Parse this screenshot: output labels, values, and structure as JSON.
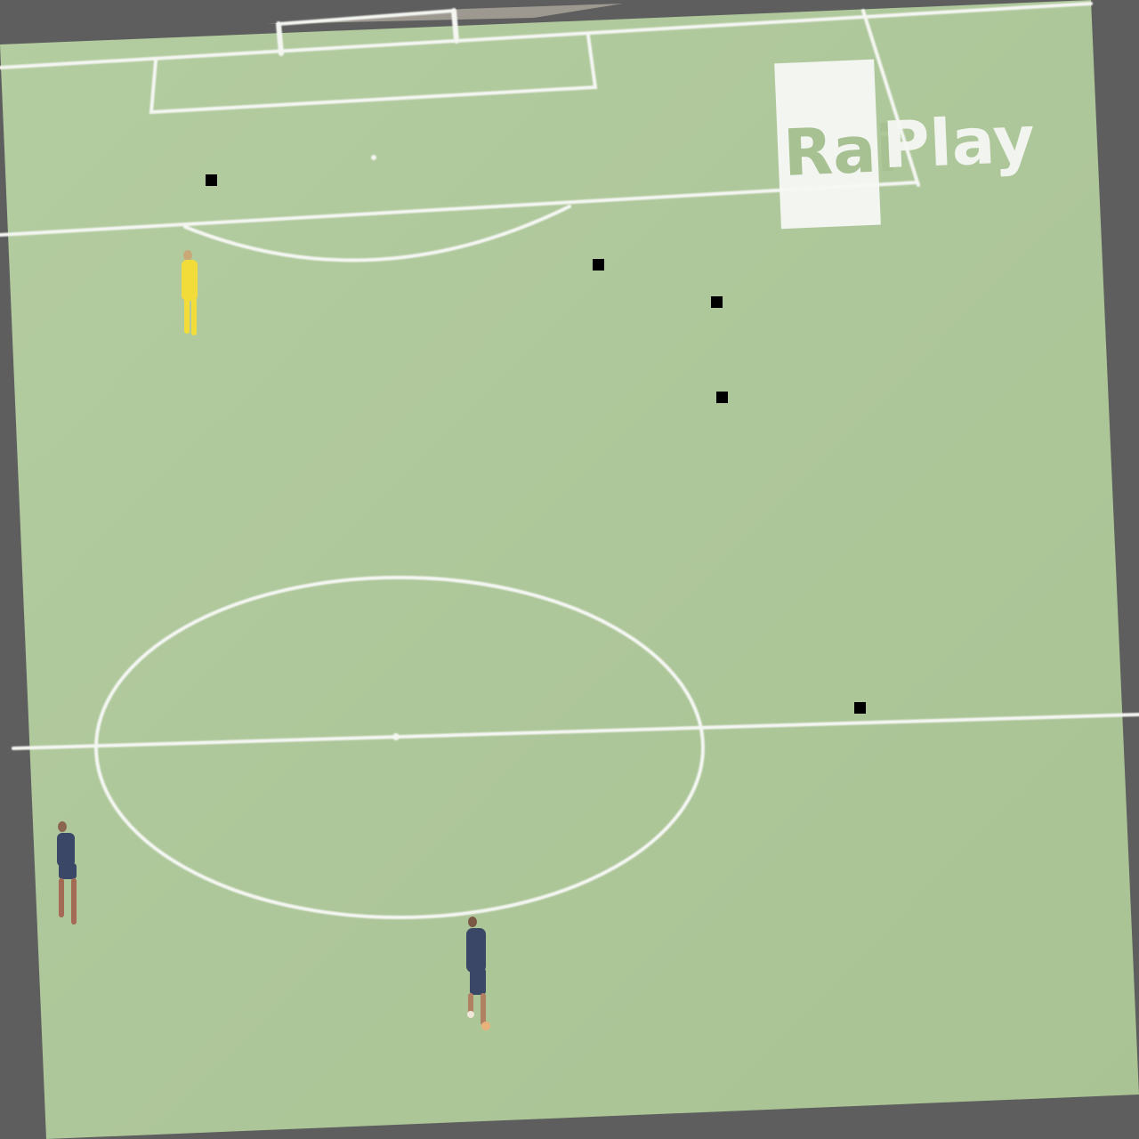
{
  "scene": {
    "background_color": "#5e5e5e",
    "pitch_color": "#aec79a",
    "line_color": "#f4f6f2"
  },
  "broadcaster_logo": {
    "part1": "Rai",
    "part2": "Play",
    "box_color": "#f6f8f4",
    "box_text_color": "#a7c192",
    "text_color": "#f6f8f4"
  },
  "players": [
    {
      "team": "goalkeeper",
      "kit_color": "#f2dc3a"
    },
    {
      "team": "outfield",
      "kit_color": "#3b4766"
    },
    {
      "team": "outfield",
      "kit_color": "#3b4766"
    }
  ],
  "markers": {
    "color": "#000000",
    "count": 5
  }
}
